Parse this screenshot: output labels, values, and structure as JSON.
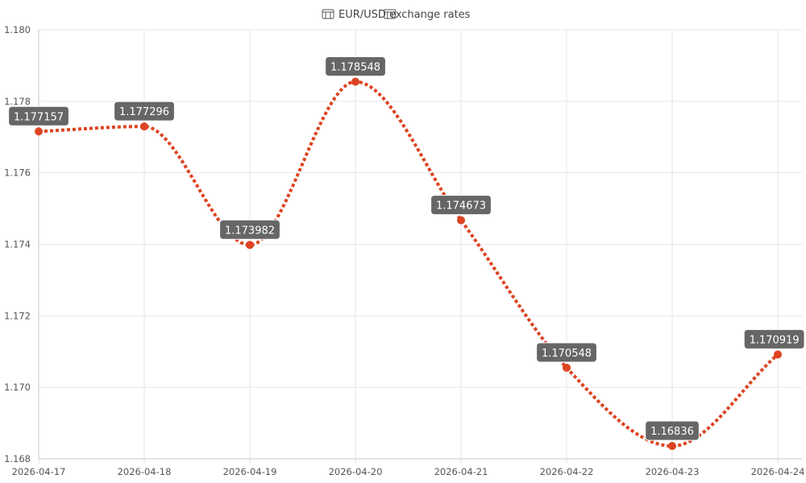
{
  "chart_data": {
    "type": "line",
    "title": "EUR/USD exchange rates",
    "title_icon_left": "eu-flag-icon",
    "title_icon_right": "us-flag-icon",
    "xlabel": "",
    "ylabel": "",
    "categories": [
      "2026-04-17",
      "2026-04-18",
      "2026-04-19",
      "2026-04-20",
      "2026-04-21",
      "2026-04-22",
      "2026-04-23",
      "2026-04-24"
    ],
    "series": [
      {
        "values": [
          1.177157,
          1.177296,
          1.173982,
          1.178548,
          1.174673,
          1.170548,
          1.16836,
          1.170919
        ],
        "data_labels": [
          "1.177157",
          "1.177296",
          "1.173982",
          "1.178548",
          "1.174673",
          "1.170548",
          "1.16836",
          "1.170919"
        ],
        "color": "#dd4422",
        "line_style": "dashed",
        "smooth": true
      }
    ],
    "ylim": [
      1.168,
      1.18
    ],
    "yticks": [
      1.168,
      1.17,
      1.172,
      1.174,
      1.176,
      1.178,
      1.18
    ],
    "ytick_labels": [
      "1.168",
      "1.170",
      "1.172",
      "1.174",
      "1.176",
      "1.178",
      "1.180"
    ],
    "grid": true,
    "legend": "none"
  }
}
